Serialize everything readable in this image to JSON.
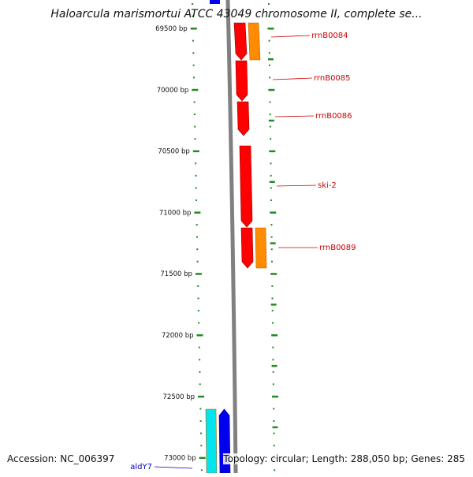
{
  "title": "Haloarcula marismortui ATCC 43049 chromosome II, complete se...",
  "footer": {
    "accession": "Accession: NC_006397",
    "summary": "Topology: circular; Length: 288,050 bp; Genes: 285"
  },
  "ruler": {
    "ticks": [
      {
        "label": "69500 bp",
        "bp": 69500
      },
      {
        "label": "70000 bp",
        "bp": 70000
      },
      {
        "label": "70500 bp",
        "bp": 70500
      },
      {
        "label": "71000 bp",
        "bp": 71000
      },
      {
        "label": "71500 bp",
        "bp": 71500
      },
      {
        "label": "72000 bp",
        "bp": 72000
      },
      {
        "label": "72500 bp",
        "bp": 72500
      },
      {
        "label": "73000 bp",
        "bp": 73000
      }
    ]
  },
  "genes": [
    {
      "name": "rrnB0084",
      "type": "rRNA"
    },
    {
      "name": "rrnB0085",
      "type": "rRNA"
    },
    {
      "name": "rrnB0086",
      "type": "rRNA"
    },
    {
      "name": "ski-2",
      "type": "CDS"
    },
    {
      "name": "rrnB0089",
      "type": "rRNA"
    },
    {
      "name": "aldY7",
      "type": "CDS"
    }
  ],
  "colors": {
    "forward_gene": "#ff0000",
    "rna_feature": "#ff8c00",
    "reverse_gene": "#0000ee",
    "reverse_feature": "#00e5ee",
    "backbone": "#808080",
    "tick": "#228b22",
    "label_forward": "#cc0000",
    "label_reverse": "#0000cc"
  }
}
